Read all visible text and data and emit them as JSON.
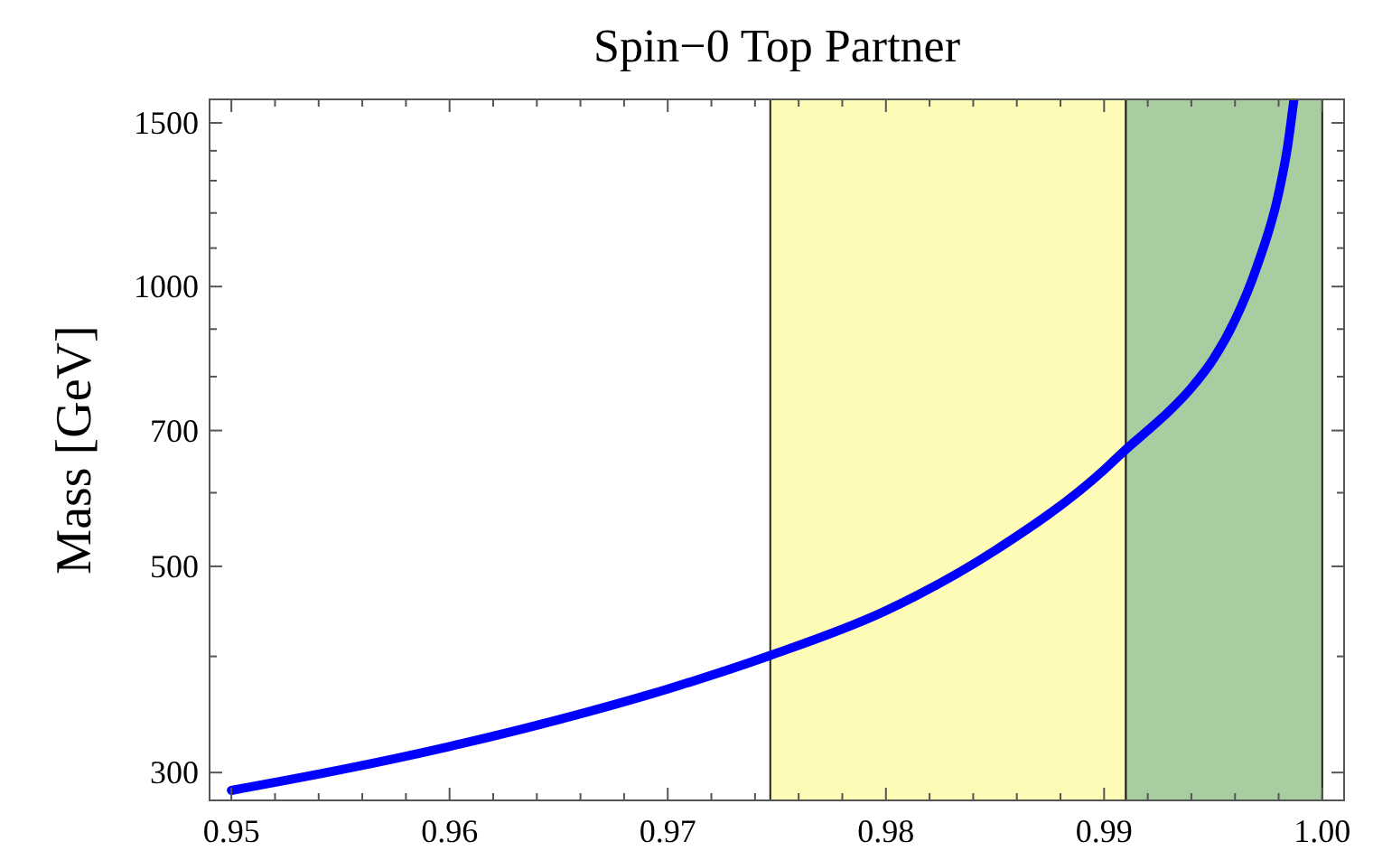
{
  "chart_data": {
    "type": "line",
    "title": "Spin−0 Top Partner",
    "ylabel": "Mass [GeV]",
    "x": [
      0.95,
      0.955,
      0.96,
      0.965,
      0.97,
      0.9747,
      0.98,
      0.985,
      0.99,
      0.991,
      0.992,
      0.993,
      0.994,
      0.995,
      0.996,
      0.997,
      0.998,
      0.9984,
      0.9987
    ],
    "series": [
      {
        "color": "#0000ff",
        "values": [
          287,
          302,
          320,
          342,
          369,
          401,
          448,
          520,
          635,
          668,
          700,
          735,
          778,
          835,
          920,
          1050,
          1260,
          1410,
          1590
        ]
      }
    ],
    "xlim": [
      0.949,
      1.001
    ],
    "ylim": [
      280,
      1590
    ],
    "log": "y",
    "grid": false,
    "marker": "none",
    "line_style": "solid",
    "xticks": [
      {
        "value": 0.95,
        "label": "0.95"
      },
      {
        "value": 0.952,
        "label": null
      },
      {
        "value": 0.954,
        "label": null
      },
      {
        "value": 0.956,
        "label": null
      },
      {
        "value": 0.958,
        "label": null
      },
      {
        "value": 0.96,
        "label": "0.96"
      },
      {
        "value": 0.962,
        "label": null
      },
      {
        "value": 0.964,
        "label": null
      },
      {
        "value": 0.966,
        "label": null
      },
      {
        "value": 0.968,
        "label": null
      },
      {
        "value": 0.97,
        "label": "0.97"
      },
      {
        "value": 0.972,
        "label": null
      },
      {
        "value": 0.974,
        "label": null
      },
      {
        "value": 0.976,
        "label": null
      },
      {
        "value": 0.978,
        "label": null
      },
      {
        "value": 0.98,
        "label": "0.98"
      },
      {
        "value": 0.982,
        "label": null
      },
      {
        "value": 0.984,
        "label": null
      },
      {
        "value": 0.986,
        "label": null
      },
      {
        "value": 0.988,
        "label": null
      },
      {
        "value": 0.99,
        "label": "0.99"
      },
      {
        "value": 0.992,
        "label": null
      },
      {
        "value": 0.994,
        "label": null
      },
      {
        "value": 0.996,
        "label": null
      },
      {
        "value": 0.998,
        "label": null
      },
      {
        "value": 1.0,
        "label": "1.00"
      }
    ],
    "yticks": [
      300,
      {
        "value": 400,
        "label": null
      },
      500,
      {
        "value": 600,
        "label": null
      },
      700,
      {
        "value": 800,
        "label": null
      },
      {
        "value": 900,
        "label": null
      },
      1000,
      {
        "value": 1100,
        "label": null
      },
      {
        "value": 1200,
        "label": null
      },
      {
        "value": 1300,
        "label": null
      },
      {
        "value": 1400,
        "label": null
      },
      1500
    ],
    "bands": [
      {
        "axis": "x",
        "from": 0.9747,
        "to": 0.991,
        "color": "#fdfbb5"
      },
      {
        "axis": "x",
        "from": 0.991,
        "to": 1.0,
        "color": "#a8cda0"
      }
    ]
  }
}
